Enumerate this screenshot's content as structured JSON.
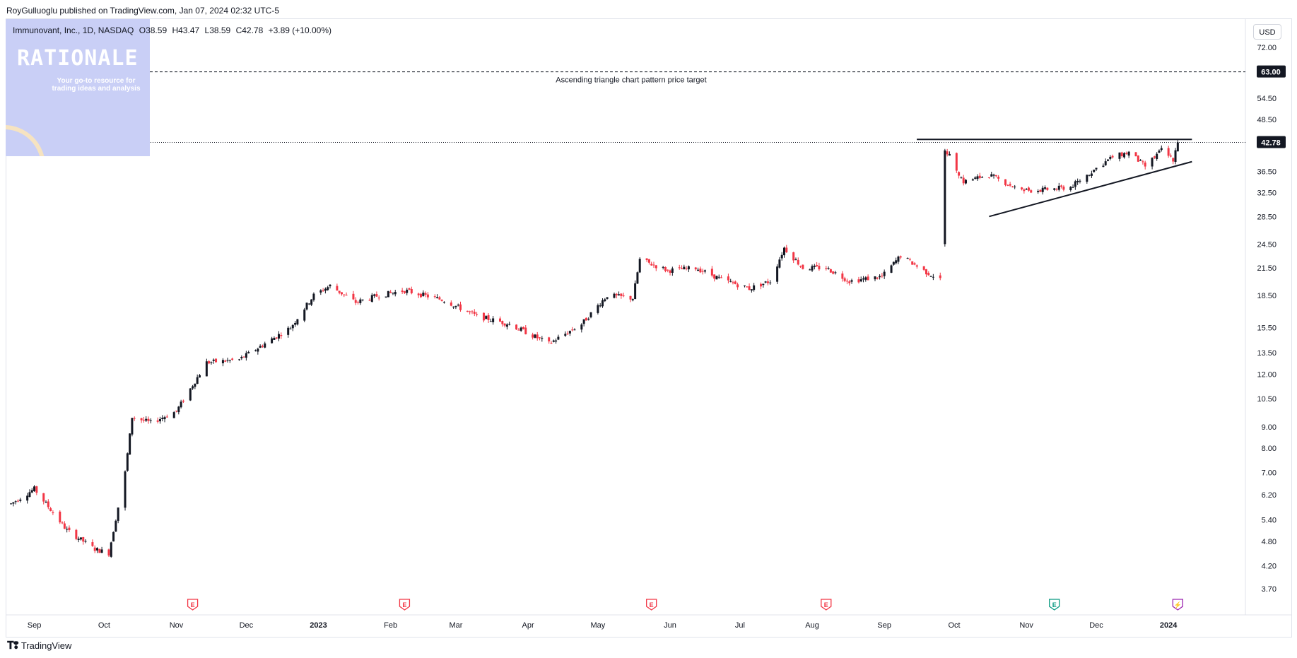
{
  "header": {
    "publisher": "RoyGulluoglu published on TradingView.com, Jan 07, 2024 02:32 UTC-5"
  },
  "symbol": {
    "name": "Immunovant, Inc., 1D, NASDAQ",
    "open": "O38.59",
    "high": "H43.47",
    "low": "L38.59",
    "close": "C42.78",
    "change": "+3.89 (+10.00%)"
  },
  "logo": {
    "brand": "RATIONALE",
    "tagline": "Your go-to resource for trading ideas and analysis"
  },
  "currency_button": "USD",
  "footer": {
    "brand": "TradingView"
  },
  "colors": {
    "up": "#131722",
    "down": "#f23645",
    "accent": "#131722"
  },
  "chart_data": {
    "type": "candlestick",
    "scale": "log",
    "ylim": [
      3.4,
      80
    ],
    "y_ticks": [
      "72.00",
      "54.50",
      "48.50",
      "36.50",
      "32.50",
      "28.50",
      "24.50",
      "21.50",
      "18.50",
      "15.50",
      "13.50",
      "12.00",
      "10.50",
      "9.00",
      "8.00",
      "7.00",
      "6.20",
      "5.40",
      "4.80",
      "4.20",
      "3.70"
    ],
    "y_tick_values": [
      72,
      54.5,
      48.5,
      36.5,
      32.5,
      28.5,
      24.5,
      21.5,
      18.5,
      15.5,
      13.5,
      12,
      10.5,
      9,
      8,
      7,
      6.2,
      5.4,
      4.8,
      4.2,
      3.7
    ],
    "x_ticks": [
      "Sep",
      "Oct",
      "Nov",
      "Dec",
      "2023",
      "Feb",
      "Mar",
      "Apr",
      "May",
      "Jun",
      "Jul",
      "Aug",
      "Sep",
      "Oct",
      "Nov",
      "Dec",
      "2024"
    ],
    "bold_x_ticks": [
      "2023",
      "2024"
    ],
    "target_price": {
      "label": "63.00",
      "value": 63,
      "annotation": "Ascending triangle chart pattern price target"
    },
    "last_price": {
      "label": "42.78",
      "value": 42.78
    },
    "resistance": {
      "value": 43.5,
      "from": "2023-09-21",
      "to": "2024-01-05"
    },
    "support_trendline": {
      "from": [
        "2023-10-16",
        28.5
      ],
      "to": [
        "2024-01-05",
        38.2
      ]
    },
    "earnings_markers": [
      {
        "date": "2022-11-08",
        "label": "E"
      },
      {
        "date": "2023-02-07",
        "label": "E"
      },
      {
        "date": "2023-05-24",
        "label": "E"
      },
      {
        "date": "2023-08-07",
        "label": "E"
      },
      {
        "date": "2023-11-13",
        "label": "E"
      },
      {
        "date": "2024-01-05",
        "label": "⚡"
      }
    ],
    "anchors": [
      [
        "2022-08-22",
        5.9
      ],
      [
        "2022-09-01",
        6.4
      ],
      [
        "2022-09-15",
        5.1
      ],
      [
        "2022-09-27",
        4.6
      ],
      [
        "2022-10-03",
        4.5
      ],
      [
        "2022-10-10",
        7.0
      ],
      [
        "2022-10-13",
        9.5
      ],
      [
        "2022-10-21",
        9.2
      ],
      [
        "2022-11-01",
        9.8
      ],
      [
        "2022-11-14",
        12.8
      ],
      [
        "2022-11-28",
        13.0
      ],
      [
        "2022-12-09",
        14.2
      ],
      [
        "2022-12-20",
        15.5
      ],
      [
        "2022-12-30",
        18.5
      ],
      [
        "2023-01-06",
        19.5
      ],
      [
        "2023-01-17",
        17.8
      ],
      [
        "2023-01-27",
        18.5
      ],
      [
        "2023-02-07",
        19.0
      ],
      [
        "2023-02-24",
        18.0
      ],
      [
        "2023-03-10",
        16.5
      ],
      [
        "2023-03-24",
        15.8
      ],
      [
        "2023-04-10",
        14.2
      ],
      [
        "2023-04-24",
        15.8
      ],
      [
        "2023-05-05",
        18.5
      ],
      [
        "2023-05-16",
        18.2
      ],
      [
        "2023-05-19",
        22.5
      ],
      [
        "2023-05-31",
        21.2
      ],
      [
        "2023-06-12",
        21.5
      ],
      [
        "2023-06-23",
        20.2
      ],
      [
        "2023-07-05",
        19.2
      ],
      [
        "2023-07-14",
        20.0
      ],
      [
        "2023-07-20",
        24.0
      ],
      [
        "2023-07-28",
        21.5
      ],
      [
        "2023-08-07",
        21.5
      ],
      [
        "2023-08-17",
        20.0
      ],
      [
        "2023-08-31",
        20.5
      ],
      [
        "2023-09-08",
        23.0
      ],
      [
        "2023-09-19",
        21.0
      ],
      [
        "2023-09-25",
        20.2
      ],
      [
        "2023-09-27",
        41.5
      ],
      [
        "2023-10-05",
        34.5
      ],
      [
        "2023-10-16",
        35.8
      ],
      [
        "2023-10-30",
        32.8
      ],
      [
        "2023-11-09",
        33.0
      ],
      [
        "2023-11-20",
        33.5
      ],
      [
        "2023-11-30",
        36.8
      ],
      [
        "2023-12-08",
        39.5
      ],
      [
        "2023-12-15",
        40.5
      ],
      [
        "2023-12-22",
        37.5
      ],
      [
        "2023-12-29",
        41.0
      ],
      [
        "2024-01-03",
        38.9
      ],
      [
        "2024-01-05",
        42.78
      ]
    ]
  }
}
